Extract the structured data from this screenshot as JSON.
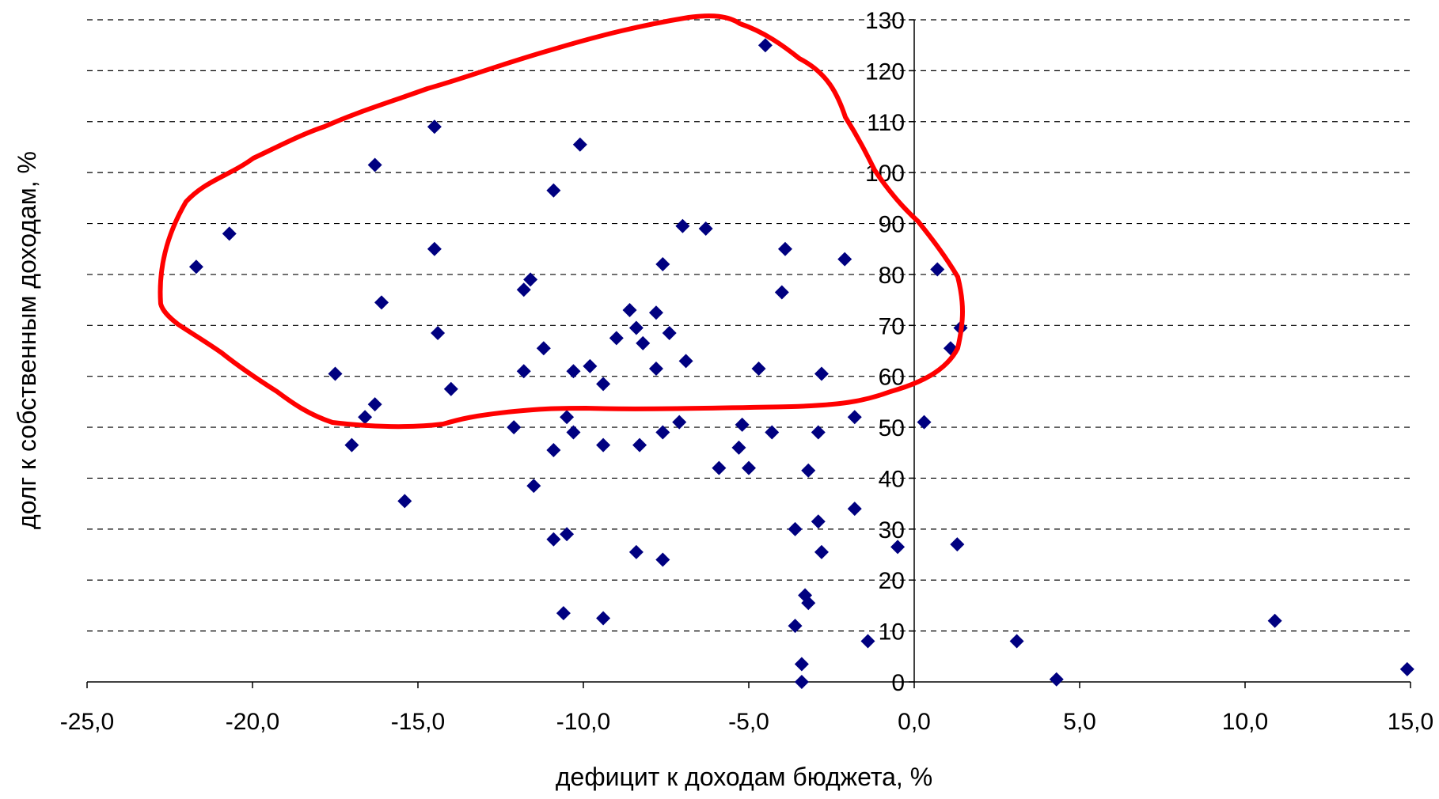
{
  "chart_data": {
    "type": "scatter",
    "title": "",
    "xlabel": "дефицит к доходам бюджета, %",
    "ylabel": "долг к собственным доходам, %",
    "xlim": [
      -25,
      15
    ],
    "ylim": [
      0,
      130
    ],
    "x_ticks": [
      -25,
      -20,
      -15,
      -10,
      -5,
      0,
      5,
      10,
      15
    ],
    "x_tick_labels": [
      "-25,0",
      "-20,0",
      "-15,0",
      "-10,0",
      "-5,0",
      "0,0",
      "5,0",
      "10,0",
      "15,0"
    ],
    "y_ticks": [
      0,
      10,
      20,
      30,
      40,
      50,
      60,
      70,
      80,
      90,
      100,
      110,
      120,
      130
    ],
    "y_tick_labels": [
      "0",
      "10",
      "20",
      "30",
      "40",
      "50",
      "60",
      "70",
      "80",
      "90",
      "100",
      "110",
      "120",
      "130"
    ],
    "grid": "horizontal dashed",
    "legend": "none",
    "marker": "diamond",
    "marker_color": "#000080",
    "highlight_outline_color": "#ff0000",
    "series": [
      {
        "points": [
          [
            -4.5,
            125
          ],
          [
            -14.5,
            109
          ],
          [
            -10.1,
            105.5
          ],
          [
            -16.3,
            101.5
          ],
          [
            -10.9,
            96.5
          ],
          [
            -20.7,
            88
          ],
          [
            -21.7,
            81.5
          ],
          [
            -14.5,
            85
          ],
          [
            -7.0,
            89.5
          ],
          [
            -6.3,
            89
          ],
          [
            -3.9,
            85
          ],
          [
            -2.1,
            83
          ],
          [
            0.7,
            81
          ],
          [
            -7.6,
            82
          ],
          [
            -11.6,
            79
          ],
          [
            -11.8,
            77
          ],
          [
            -16.1,
            74.5
          ],
          [
            -4.0,
            76.5
          ],
          [
            -8.6,
            73
          ],
          [
            -7.8,
            72.5
          ],
          [
            -8.4,
            69.5
          ],
          [
            -7.4,
            68.5
          ],
          [
            -9.0,
            67.5
          ],
          [
            -8.2,
            66.5
          ],
          [
            -14.4,
            68.5
          ],
          [
            1.4,
            69.5
          ],
          [
            1.1,
            65.5
          ],
          [
            -11.2,
            65.5
          ],
          [
            -6.9,
            63
          ],
          [
            -17.5,
            60.5
          ],
          [
            -11.8,
            61
          ],
          [
            -10.3,
            61
          ],
          [
            -9.8,
            62
          ],
          [
            -7.8,
            61.5
          ],
          [
            -4.7,
            61.5
          ],
          [
            -2.8,
            60.5
          ],
          [
            -14.0,
            57.5
          ],
          [
            -9.4,
            58.5
          ],
          [
            -16.3,
            54.5
          ],
          [
            -16.6,
            52
          ],
          [
            -10.5,
            52
          ],
          [
            -12.1,
            50
          ],
          [
            -10.3,
            49
          ],
          [
            -7.6,
            49
          ],
          [
            -7.1,
            51
          ],
          [
            -5.2,
            50.5
          ],
          [
            -4.3,
            49
          ],
          [
            -2.9,
            49
          ],
          [
            -1.8,
            52
          ],
          [
            0.3,
            51
          ],
          [
            -17.0,
            46.5
          ],
          [
            -10.9,
            45.5
          ],
          [
            -9.4,
            46.5
          ],
          [
            -8.3,
            46.5
          ],
          [
            -5.3,
            46
          ],
          [
            -5.9,
            42
          ],
          [
            -5.0,
            42
          ],
          [
            -3.2,
            41.5
          ],
          [
            -11.5,
            38.5
          ],
          [
            -15.4,
            35.5
          ],
          [
            -1.8,
            34
          ],
          [
            -3.6,
            30
          ],
          [
            -2.9,
            31.5
          ],
          [
            -10.9,
            28
          ],
          [
            -10.5,
            29
          ],
          [
            -0.5,
            26.5
          ],
          [
            1.3,
            27
          ],
          [
            -8.4,
            25.5
          ],
          [
            -7.6,
            24
          ],
          [
            -2.8,
            25.5
          ],
          [
            -3.3,
            17
          ],
          [
            -3.2,
            15.5
          ],
          [
            -10.6,
            13.5
          ],
          [
            -9.4,
            12.5
          ],
          [
            -3.6,
            11
          ],
          [
            -1.4,
            8
          ],
          [
            3.1,
            8
          ],
          [
            10.9,
            12
          ],
          [
            -3.4,
            3.5
          ],
          [
            -3.4,
            0
          ],
          [
            4.3,
            0.5
          ],
          [
            14.9,
            2.5
          ]
        ]
      }
    ]
  }
}
